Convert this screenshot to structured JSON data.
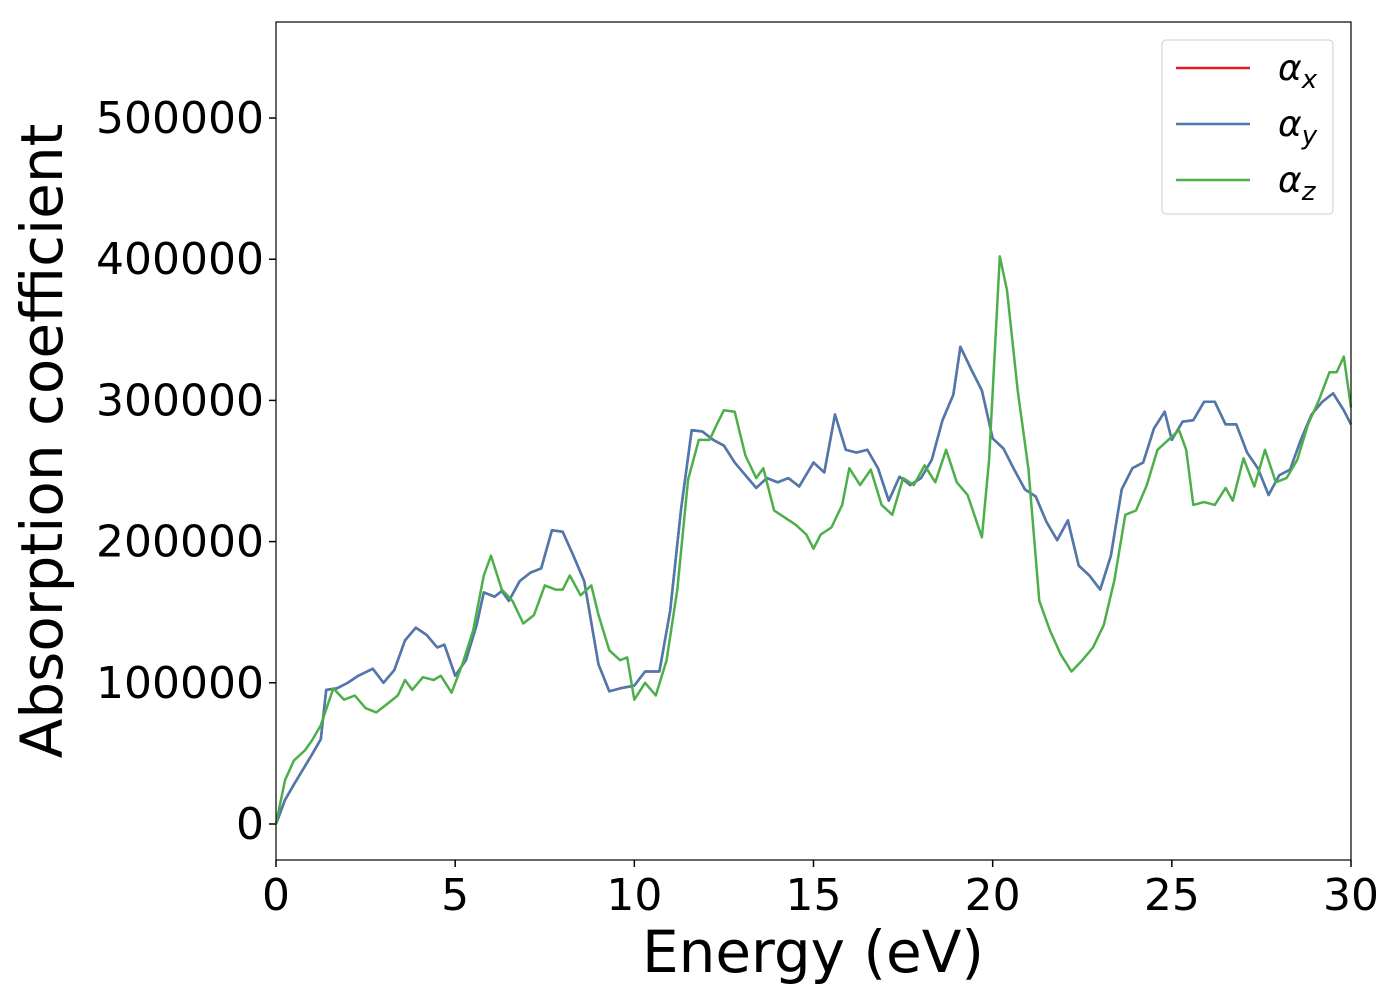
{
  "chart_data": {
    "type": "line",
    "x_label": "Energy (eV)",
    "y_label": "Absorption coefficient",
    "xlim": [
      0,
      30
    ],
    "ylim": [
      -25500,
      568000
    ],
    "xticks": [
      0,
      5,
      10,
      15,
      20,
      25,
      30
    ],
    "yticks": [
      0,
      100000,
      200000,
      300000,
      400000,
      500000
    ],
    "legend": "upper right",
    "series": [
      {
        "name": "αx",
        "color": "#e41a1c",
        "x": [
          0,
          0.25,
          0.5,
          1.0,
          1.25,
          1.4,
          1.7,
          2.0,
          2.3,
          2.7,
          3.0,
          3.3,
          3.6,
          3.9,
          4.2,
          4.5,
          4.7,
          5.0,
          5.3,
          5.6,
          5.8,
          6.1,
          6.3,
          6.5,
          6.8,
          7.1,
          7.4,
          7.7,
          8.0,
          8.3,
          8.6,
          9.0,
          9.3,
          9.6,
          10.0,
          10.3,
          10.7,
          11.0,
          11.3,
          11.6,
          11.9,
          12.2,
          12.5,
          12.8,
          13.1,
          13.4,
          13.7,
          14.0,
          14.3,
          14.6,
          15.0,
          15.3,
          15.6,
          15.9,
          16.2,
          16.5,
          16.8,
          17.1,
          17.4,
          17.7,
          18.0,
          18.3,
          18.6,
          18.9,
          19.1,
          19.4,
          19.7,
          20.0,
          20.3,
          20.6,
          20.9,
          21.2,
          21.5,
          21.8,
          22.1,
          22.4,
          22.7,
          23.0,
          23.3,
          23.6,
          23.9,
          24.2,
          24.5,
          24.8,
          25.0,
          25.3,
          25.6,
          25.9,
          26.2,
          26.5,
          26.8,
          27.1,
          27.4,
          27.7,
          28.0,
          28.3,
          28.6,
          28.9,
          29.2,
          29.5,
          29.8,
          30.0
        ],
        "values": [
          0,
          17000,
          28000,
          49000,
          60000,
          95000,
          96000,
          100000,
          105000,
          110000,
          100000,
          109000,
          130000,
          139000,
          134000,
          125000,
          127000,
          105000,
          116000,
          141000,
          164000,
          161000,
          165000,
          158000,
          172000,
          178000,
          181000,
          208000,
          207000,
          190000,
          172000,
          113000,
          94000,
          96000,
          98000,
          108000,
          108000,
          151000,
          222000,
          279000,
          278000,
          272000,
          268000,
          256000,
          247000,
          238000,
          245000,
          242000,
          245000,
          239000,
          256000,
          249000,
          290000,
          265000,
          263000,
          265000,
          252000,
          229000,
          246000,
          240000,
          245000,
          258000,
          286000,
          304000,
          338000,
          322000,
          307000,
          273000,
          266000,
          251000,
          237000,
          232000,
          214000,
          201000,
          215000,
          183000,
          176000,
          166000,
          190000,
          237000,
          252000,
          256000,
          280000,
          292000,
          272000,
          285000,
          286000,
          299000,
          299000,
          283000,
          283000,
          263000,
          252000,
          233000,
          247000,
          251000,
          272000,
          290000,
          299000,
          305000,
          293000,
          283000
        ]
      },
      {
        "name": "αy",
        "color": "#4a7bb0",
        "x": [
          0,
          0.25,
          0.5,
          1.0,
          1.25,
          1.4,
          1.7,
          2.0,
          2.3,
          2.7,
          3.0,
          3.3,
          3.6,
          3.9,
          4.2,
          4.5,
          4.7,
          5.0,
          5.3,
          5.6,
          5.8,
          6.1,
          6.3,
          6.5,
          6.8,
          7.1,
          7.4,
          7.7,
          8.0,
          8.3,
          8.6,
          9.0,
          9.3,
          9.6,
          10.0,
          10.3,
          10.7,
          11.0,
          11.3,
          11.6,
          11.9,
          12.2,
          12.5,
          12.8,
          13.1,
          13.4,
          13.7,
          14.0,
          14.3,
          14.6,
          15.0,
          15.3,
          15.6,
          15.9,
          16.2,
          16.5,
          16.8,
          17.1,
          17.4,
          17.7,
          18.0,
          18.3,
          18.6,
          18.9,
          19.1,
          19.4,
          19.7,
          20.0,
          20.3,
          20.6,
          20.9,
          21.2,
          21.5,
          21.8,
          22.1,
          22.4,
          22.7,
          23.0,
          23.3,
          23.6,
          23.9,
          24.2,
          24.5,
          24.8,
          25.0,
          25.3,
          25.6,
          25.9,
          26.2,
          26.5,
          26.8,
          27.1,
          27.4,
          27.7,
          28.0,
          28.3,
          28.6,
          28.9,
          29.2,
          29.5,
          29.8,
          30.0
        ],
        "values": [
          0,
          17000,
          28000,
          49000,
          60000,
          95000,
          96000,
          100000,
          105000,
          110000,
          100000,
          109000,
          130000,
          139000,
          134000,
          125000,
          127000,
          105000,
          116000,
          141000,
          164000,
          161000,
          165000,
          158000,
          172000,
          178000,
          181000,
          208000,
          207000,
          190000,
          172000,
          113000,
          94000,
          96000,
          98000,
          108000,
          108000,
          151000,
          222000,
          279000,
          278000,
          272000,
          268000,
          256000,
          247000,
          238000,
          245000,
          242000,
          245000,
          239000,
          256000,
          249000,
          290000,
          265000,
          263000,
          265000,
          252000,
          229000,
          246000,
          240000,
          245000,
          258000,
          286000,
          304000,
          338000,
          322000,
          307000,
          273000,
          266000,
          251000,
          237000,
          232000,
          214000,
          201000,
          215000,
          183000,
          176000,
          166000,
          190000,
          237000,
          252000,
          256000,
          280000,
          292000,
          272000,
          285000,
          286000,
          299000,
          299000,
          283000,
          283000,
          263000,
          252000,
          233000,
          247000,
          251000,
          272000,
          290000,
          299000,
          305000,
          293000,
          283000
        ]
      },
      {
        "name": "αz",
        "color": "#4daf4a",
        "x": [
          0,
          0.25,
          0.5,
          0.8,
          1.0,
          1.25,
          1.6,
          1.9,
          2.2,
          2.5,
          2.8,
          3.1,
          3.4,
          3.6,
          3.8,
          4.1,
          4.4,
          4.6,
          4.9,
          5.2,
          5.5,
          5.8,
          6.0,
          6.3,
          6.6,
          6.9,
          7.2,
          7.5,
          7.8,
          8.0,
          8.2,
          8.5,
          8.8,
          9.0,
          9.3,
          9.6,
          9.8,
          10.0,
          10.3,
          10.6,
          10.9,
          11.2,
          11.5,
          11.8,
          12.1,
          12.3,
          12.5,
          12.8,
          13.1,
          13.4,
          13.6,
          13.9,
          14.2,
          14.5,
          14.8,
          15.0,
          15.2,
          15.5,
          15.8,
          16.0,
          16.3,
          16.6,
          16.9,
          17.2,
          17.5,
          17.8,
          18.1,
          18.4,
          18.7,
          19.0,
          19.3,
          19.7,
          19.9,
          20.2,
          20.4,
          20.7,
          21.0,
          21.3,
          21.6,
          21.9,
          22.2,
          22.5,
          22.8,
          23.1,
          23.4,
          23.7,
          24.0,
          24.3,
          24.6,
          24.9,
          25.2,
          25.4,
          25.6,
          25.9,
          26.2,
          26.5,
          26.7,
          27.0,
          27.3,
          27.6,
          27.9,
          28.2,
          28.5,
          28.8,
          29.1,
          29.4,
          29.6,
          29.8,
          30.0
        ],
        "values": [
          0,
          31000,
          45000,
          52000,
          59000,
          70000,
          96000,
          88000,
          91000,
          82000,
          79000,
          85000,
          91000,
          102000,
          95000,
          104000,
          102000,
          105000,
          93000,
          113000,
          137000,
          176000,
          190000,
          166000,
          158000,
          142000,
          148000,
          169000,
          166000,
          166000,
          176000,
          162000,
          169000,
          148000,
          123000,
          116000,
          118000,
          88000,
          100000,
          91000,
          116000,
          166000,
          244000,
          272000,
          272000,
          283000,
          293000,
          292000,
          261000,
          245000,
          252000,
          222000,
          217000,
          212000,
          205000,
          195000,
          205000,
          210000,
          226000,
          252000,
          240000,
          251000,
          226000,
          219000,
          245000,
          240000,
          254000,
          242000,
          265000,
          242000,
          233000,
          203000,
          258000,
          402000,
          378000,
          307000,
          251000,
          158000,
          137000,
          120000,
          108000,
          116000,
          125000,
          141000,
          173000,
          219000,
          222000,
          240000,
          265000,
          272000,
          279000,
          265000,
          226000,
          228000,
          226000,
          238000,
          229000,
          259000,
          239000,
          265000,
          242000,
          245000,
          258000,
          283000,
          300000,
          320000,
          320000,
          331000,
          295000
        ]
      }
    ]
  }
}
